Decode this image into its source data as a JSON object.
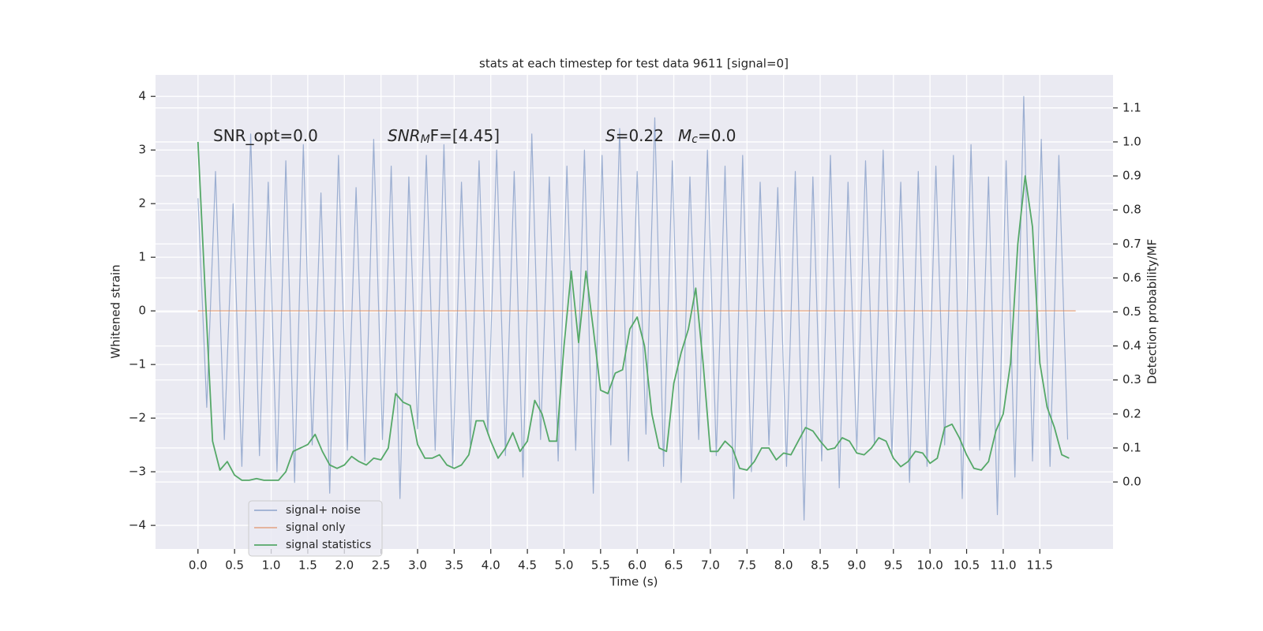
{
  "chart_data": {
    "type": "line",
    "title": "stats at each timestep for test data 9611 [signal=0]",
    "xlabel": "Time (s)",
    "ylabel": "Whitened strain",
    "y2label": "Detection probability/MF",
    "xlim": [
      -0.58,
      12.5
    ],
    "ylim": [
      -4.44,
      4.4
    ],
    "y2lim": [
      -0.197,
      1.197
    ],
    "xticks": [
      {
        "value": 0,
        "label": "0.0"
      },
      0.5,
      {
        "value": 1,
        "label": "1.0"
      },
      1.5,
      {
        "value": 2,
        "label": "2.0"
      },
      2.5,
      {
        "value": 3,
        "label": "3.0"
      },
      3.5,
      {
        "value": 4,
        "label": "4.0"
      },
      4.5,
      {
        "value": 5,
        "label": "5.0"
      },
      5.5,
      {
        "value": 6,
        "label": "6.0"
      },
      6.5,
      {
        "value": 7,
        "label": "7.0"
      },
      7.5,
      {
        "value": 8,
        "label": "8.0"
      },
      8.5,
      {
        "value": 9,
        "label": "9.0"
      },
      9.5,
      {
        "value": 10,
        "label": "10.0"
      },
      10.5,
      {
        "value": 11,
        "label": "11.0"
      },
      11.5
    ],
    "yticks": [
      {
        "value": -4,
        "label": "−4"
      },
      {
        "value": -3,
        "label": "−3"
      },
      {
        "value": -2,
        "label": "−2"
      },
      {
        "value": -1,
        "label": "−1"
      },
      0,
      1,
      2,
      3,
      4
    ],
    "y2ticks": [
      {
        "value": 0,
        "label": "0.0"
      },
      0.1,
      0.2,
      0.3,
      0.4,
      0.5,
      0.6,
      0.7,
      0.8,
      0.9,
      {
        "value": 1,
        "label": "1.0"
      },
      1.1
    ],
    "grid": true,
    "annotations": [
      {
        "text": "SNR_opt=0.0"
      },
      {
        "symbol": "SNR",
        "sub": "M",
        "text": "F=[4.45]"
      },
      {
        "symbol": "S",
        "text": "=0.22"
      },
      {
        "symbol": "M",
        "sub": "c",
        "text": "=0.0"
      }
    ],
    "series": [
      {
        "name": "signal+ noise",
        "color": "#4c72b0",
        "x": [
          0,
          0.12,
          0.24,
          0.36,
          0.48,
          0.6,
          0.72,
          0.84,
          0.96,
          1.08,
          1.2,
          1.32,
          1.44,
          1.56,
          1.68,
          1.8,
          1.92,
          2.04,
          2.16,
          2.28,
          2.4,
          2.52,
          2.64,
          2.76,
          2.88,
          3.0,
          3.12,
          3.24,
          3.36,
          3.48,
          3.6,
          3.72,
          3.84,
          3.96,
          4.08,
          4.2,
          4.32,
          4.44,
          4.56,
          4.68,
          4.8,
          4.92,
          5.04,
          5.16,
          5.28,
          5.4,
          5.52,
          5.64,
          5.76,
          5.88,
          6.0,
          6.12,
          6.24,
          6.36,
          6.48,
          6.6,
          6.72,
          6.84,
          6.96,
          7.08,
          7.2,
          7.32,
          7.44,
          7.56,
          7.68,
          7.8,
          7.92,
          8.04,
          8.16,
          8.28,
          8.4,
          8.52,
          8.64,
          8.76,
          8.88,
          9.0,
          9.12,
          9.24,
          9.36,
          9.48,
          9.6,
          9.72,
          9.84,
          9.96,
          10.08,
          10.2,
          10.32,
          10.44,
          10.56,
          10.68,
          10.8,
          10.92,
          11.04,
          11.16,
          11.28,
          11.4,
          11.52,
          11.64,
          11.76,
          11.88
        ],
        "values": [
          2.1,
          -1.8,
          2.6,
          -2.4,
          2.0,
          -2.9,
          3.3,
          -2.7,
          2.4,
          -3.0,
          2.8,
          -3.2,
          3.1,
          -2.5,
          2.2,
          -3.4,
          2.9,
          -2.6,
          2.3,
          -2.8,
          3.2,
          -2.4,
          2.7,
          -3.5,
          2.5,
          -2.2,
          2.9,
          -2.6,
          3.1,
          -2.9,
          2.4,
          -2.5,
          2.8,
          -2.3,
          3.0,
          -2.7,
          2.6,
          -3.1,
          3.3,
          -2.4,
          2.5,
          -2.8,
          2.7,
          -2.6,
          3.0,
          -3.4,
          2.9,
          -2.5,
          3.4,
          -2.8,
          2.6,
          -2.3,
          3.6,
          -2.9,
          2.8,
          -3.2,
          2.5,
          -2.4,
          3.0,
          -2.7,
          2.7,
          -3.5,
          2.9,
          -3.0,
          2.4,
          -2.5,
          2.3,
          -2.9,
          2.6,
          -3.9,
          2.5,
          -2.8,
          2.9,
          -3.3,
          2.4,
          -2.6,
          2.8,
          -2.5,
          3.0,
          -2.7,
          2.4,
          -3.2,
          2.6,
          -2.9,
          2.7,
          -2.5,
          2.9,
          -3.5,
          3.1,
          -2.6,
          2.5,
          -3.8,
          2.8,
          -3.1,
          4.0,
          -2.8,
          3.2,
          -2.9,
          2.9,
          -2.4
        ]
      },
      {
        "name": "signal only",
        "color": "#dd8452",
        "x": [
          0,
          11.99
        ],
        "values": [
          0,
          0
        ]
      },
      {
        "name": "signal statistics",
        "color": "#55a868",
        "axis": "y2",
        "x": [
          0,
          0.1,
          0.2,
          0.3,
          0.4,
          0.5,
          0.6,
          0.7,
          0.8,
          0.9,
          1.0,
          1.1,
          1.2,
          1.3,
          1.4,
          1.5,
          1.6,
          1.7,
          1.8,
          1.9,
          2.0,
          2.1,
          2.2,
          2.3,
          2.4,
          2.5,
          2.6,
          2.7,
          2.8,
          2.9,
          3.0,
          3.1,
          3.2,
          3.3,
          3.4,
          3.5,
          3.6,
          3.7,
          3.8,
          3.9,
          4.0,
          4.1,
          4.2,
          4.3,
          4.4,
          4.5,
          4.6,
          4.7,
          4.8,
          4.9,
          5.0,
          5.1,
          5.2,
          5.3,
          5.4,
          5.5,
          5.6,
          5.7,
          5.8,
          5.9,
          6.0,
          6.1,
          6.2,
          6.3,
          6.4,
          6.5,
          6.6,
          6.7,
          6.8,
          6.9,
          7.0,
          7.1,
          7.2,
          7.3,
          7.4,
          7.5,
          7.6,
          7.7,
          7.8,
          7.9,
          8.0,
          8.1,
          8.2,
          8.3,
          8.4,
          8.5,
          8.6,
          8.7,
          8.8,
          8.9,
          9.0,
          9.1,
          9.2,
          9.3,
          9.4,
          9.5,
          9.6,
          9.7,
          9.8,
          9.9,
          10.0,
          10.1,
          10.2,
          10.3,
          10.4,
          10.5,
          10.6,
          10.7,
          10.8,
          10.9,
          11.0,
          11.1,
          11.2,
          11.3,
          11.4,
          11.5,
          11.6,
          11.7,
          11.8,
          11.9
        ],
        "values": [
          1.0,
          0.55,
          0.12,
          0.035,
          0.06,
          0.02,
          0.005,
          0.005,
          0.01,
          0.005,
          0.005,
          0.005,
          0.03,
          0.09,
          0.1,
          0.11,
          0.14,
          0.09,
          0.05,
          0.04,
          0.05,
          0.075,
          0.06,
          0.05,
          0.07,
          0.065,
          0.1,
          0.26,
          0.235,
          0.225,
          0.11,
          0.07,
          0.07,
          0.08,
          0.05,
          0.04,
          0.05,
          0.08,
          0.18,
          0.18,
          0.12,
          0.07,
          0.1,
          0.145,
          0.09,
          0.12,
          0.24,
          0.2,
          0.12,
          0.12,
          0.4,
          0.62,
          0.41,
          0.62,
          0.45,
          0.27,
          0.26,
          0.32,
          0.33,
          0.45,
          0.485,
          0.4,
          0.2,
          0.1,
          0.09,
          0.29,
          0.38,
          0.45,
          0.57,
          0.35,
          0.09,
          0.09,
          0.12,
          0.1,
          0.04,
          0.035,
          0.06,
          0.1,
          0.1,
          0.065,
          0.085,
          0.08,
          0.12,
          0.16,
          0.15,
          0.12,
          0.095,
          0.1,
          0.13,
          0.12,
          0.085,
          0.08,
          0.1,
          0.13,
          0.12,
          0.07,
          0.045,
          0.06,
          0.09,
          0.085,
          0.055,
          0.07,
          0.16,
          0.17,
          0.13,
          0.08,
          0.04,
          0.035,
          0.06,
          0.15,
          0.2,
          0.35,
          0.7,
          0.9,
          0.75,
          0.35,
          0.22,
          0.16,
          0.08,
          0.07
        ]
      }
    ]
  }
}
